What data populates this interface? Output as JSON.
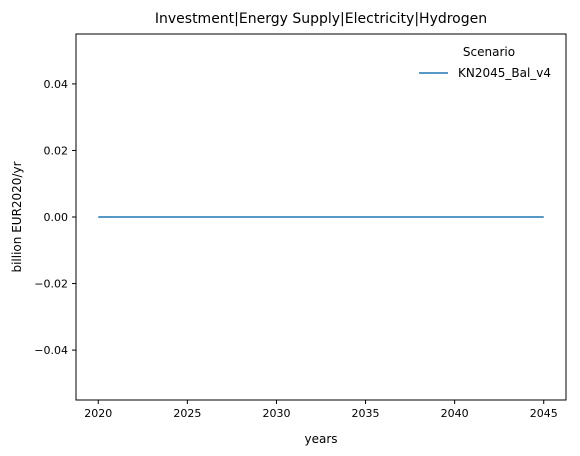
{
  "chart_data": {
    "type": "line",
    "title": "Investment|Energy Supply|Electricity|Hydrogen",
    "xlabel": "years",
    "ylabel": "billion EUR2020/yr",
    "xlim": [
      2018.75,
      2046.25
    ],
    "ylim": [
      -0.055,
      0.055
    ],
    "x_ticks": [
      2020,
      2025,
      2030,
      2035,
      2040,
      2045
    ],
    "x_tick_labels": [
      "2020",
      "2025",
      "2030",
      "2035",
      "2040",
      "2045"
    ],
    "y_ticks": [
      -0.04,
      -0.02,
      0.0,
      0.02,
      0.04
    ],
    "y_tick_labels": [
      "−0.04",
      "−0.02",
      "0.00",
      "0.02",
      "0.04"
    ],
    "grid": false,
    "legend": {
      "title": "Scenario",
      "placement": "top-right"
    },
    "series": [
      {
        "name": "KN2045_Bal_v4",
        "color": "#1f77b4",
        "x": [
          2020,
          2025,
          2030,
          2035,
          2040,
          2045
        ],
        "y": [
          0,
          0,
          0,
          0,
          0,
          0
        ]
      }
    ]
  }
}
